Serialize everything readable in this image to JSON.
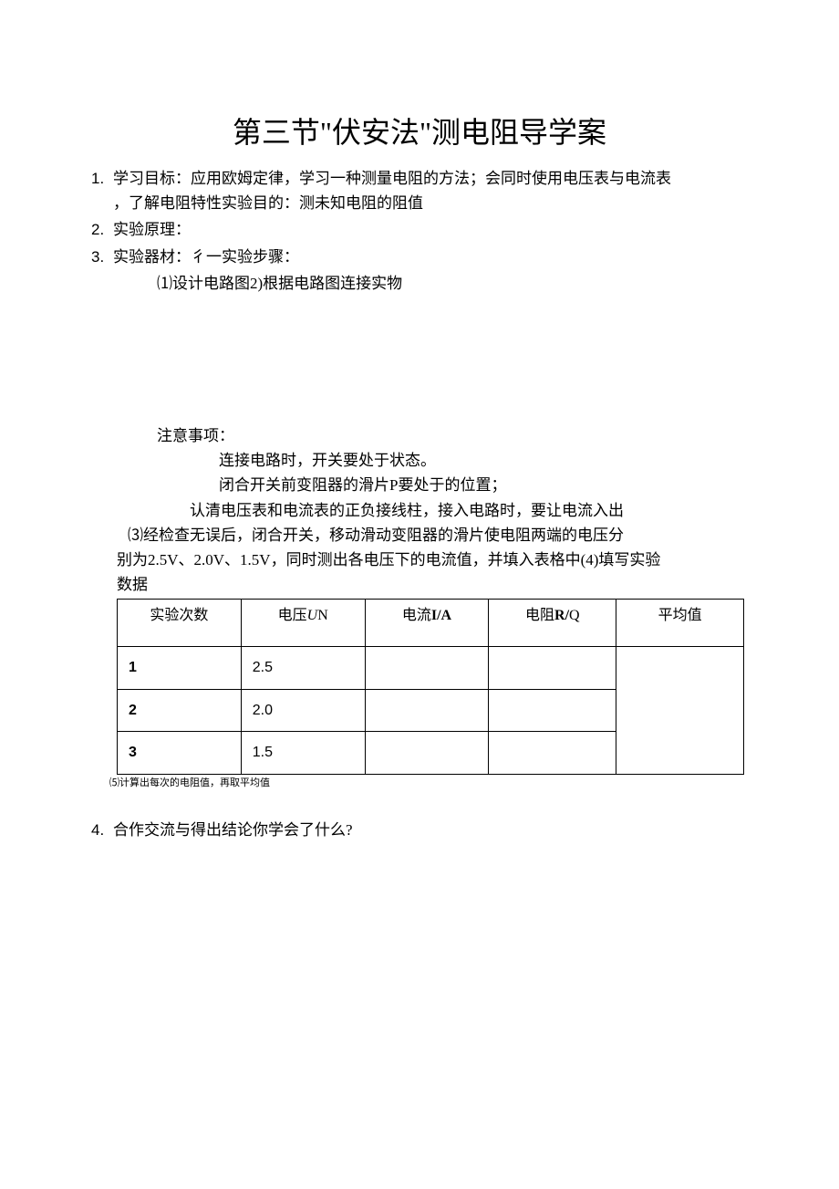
{
  "title": "第三节\"伏安法\"测电阻导学案",
  "items": {
    "i1": {
      "num": "1.",
      "text1": "学习目标：应用欧姆定律，学习一种测量电阻的方法；会同时使用电压表与电流表",
      "text2": "，了解电阻特性实验目的：测未知电阻的阻值"
    },
    "i2": {
      "num": "2.",
      "text": "实验原理："
    },
    "i3": {
      "num": "3.",
      "text": "实验器材：彳一实验步骤：",
      "sub1": "⑴设计电路图2)根据电路图连接实物"
    },
    "notice": {
      "label": "注意事项：",
      "n1": "连接电路时，开关要处于状态。",
      "n2": "闭合开关前变阻器的滑片P要处于的位置；",
      "n3": "认清电压表和电流表的正负接线柱，接入电路时，要让电流入出"
    },
    "step3": {
      "a": "⑶经检查无误后，闭合开关，移动滑动变阻器的滑片使电阻两端的电压分",
      "b": "别为2.5V、2.0V、1.5V，同时测出各电压下的电流值，并填入表格中(4)填写实验",
      "c": "数据"
    },
    "table": {
      "headers": {
        "h1": "实验次数",
        "h2a": "电压",
        "h2b": "U",
        "h2c": "N",
        "h3a": "电流",
        "h3b": "I/A",
        "h4a": "电阻",
        "h4b": "R/",
        "h4c": "Q",
        "h5": "平均值"
      },
      "rows": [
        {
          "n": "1",
          "v": "2.5"
        },
        {
          "n": "2",
          "v": "2.0"
        },
        {
          "n": "3",
          "v": "1.5"
        }
      ]
    },
    "note5": "⑸计算出每次的电阻值，再取平均值",
    "i4": {
      "num": "4.",
      "text": "合作交流与得出结论你学会了什么?"
    }
  }
}
